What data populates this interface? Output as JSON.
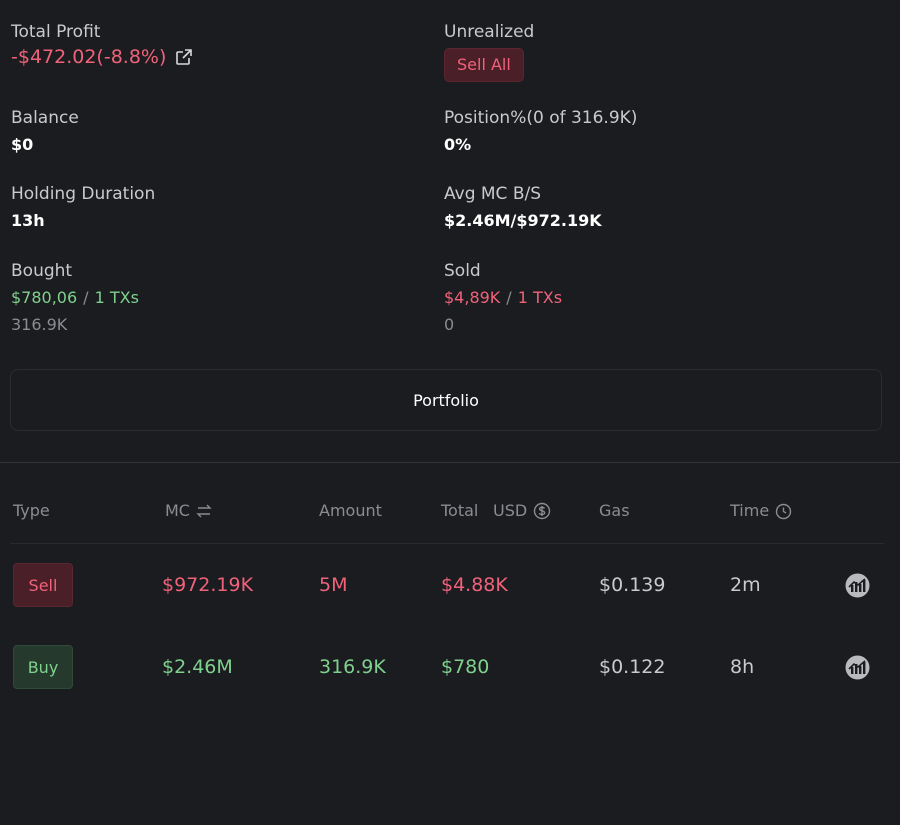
{
  "stats": {
    "total_profit": {
      "label": "Total Profit",
      "value": "-$472.02(-8.8%)"
    },
    "unrealized": {
      "label": "Unrealized",
      "button": "Sell All"
    },
    "balance": {
      "label": "Balance",
      "value": "$0"
    },
    "position": {
      "label": "Position%(0 of 316.9K)",
      "value": "0%"
    },
    "holding_duration": {
      "label": "Holding Duration",
      "value": "13h"
    },
    "avg_mc": {
      "label": "Avg MC B/S",
      "value": "$2.46M/$972.19K"
    },
    "bought": {
      "label": "Bought",
      "amount": "$780,06",
      "slash": "/",
      "txs": "1 TXs",
      "tokens": "316.9K"
    },
    "sold": {
      "label": "Sold",
      "amount": "$4,89K",
      "slash": "/",
      "txs": "1 TXs",
      "tokens": "0"
    }
  },
  "portfolio_button": "Portfolio",
  "table": {
    "headers": {
      "type": "Type",
      "mc": "MC",
      "amount": "Amount",
      "total": "Total",
      "usd": "USD",
      "gas": "Gas",
      "time": "Time"
    },
    "rows": [
      {
        "type": "Sell",
        "mc": "$972.19K",
        "amount": "5M",
        "total": "$4.88K",
        "gas": "$0.139",
        "time": "2m"
      },
      {
        "type": "Buy",
        "mc": "$2.46M",
        "amount": "316.9K",
        "total": "$780",
        "gas": "$0.122",
        "time": "8h"
      }
    ]
  },
  "colors": {
    "background": "#1b1c1f",
    "negative": "#f0627a",
    "positive": "#7fd18e"
  },
  "icons": {
    "external_link": "external-link-icon",
    "swap": "swap-arrows-icon",
    "currency": "currency-icon",
    "clock": "clock-icon",
    "chart": "chart-icon"
  }
}
